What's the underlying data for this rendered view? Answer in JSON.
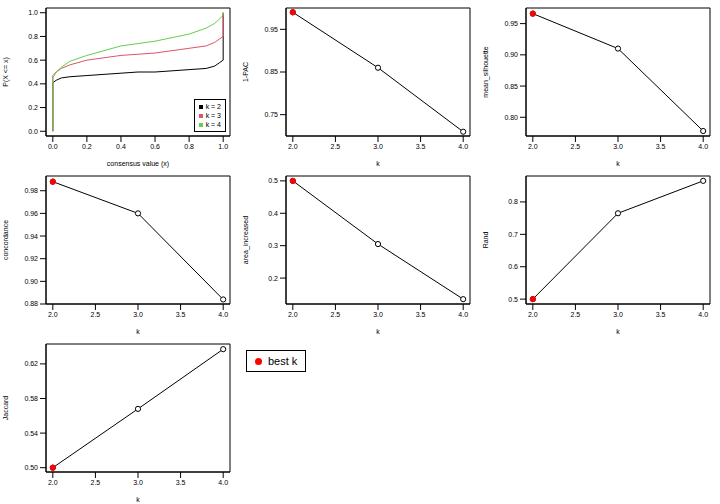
{
  "chart_data": [
    {
      "type": "line",
      "x_label": "consensus value (x)",
      "y_label": "P(X <= x)",
      "x": [
        0,
        0,
        0.02,
        0.05,
        0.1,
        0.2,
        0.3,
        0.4,
        0.5,
        0.6,
        0.7,
        0.8,
        0.9,
        0.95,
        0.98,
        1,
        1
      ],
      "series": [
        {
          "name": "k = 2",
          "color": "#000000",
          "values": [
            0,
            0.41,
            0.43,
            0.45,
            0.46,
            0.47,
            0.48,
            0.49,
            0.5,
            0.5,
            0.51,
            0.52,
            0.53,
            0.55,
            0.58,
            0.6,
            1.0
          ]
        },
        {
          "name": "k = 3",
          "color": "#DF536B",
          "values": [
            0,
            0.47,
            0.5,
            0.53,
            0.56,
            0.6,
            0.62,
            0.64,
            0.65,
            0.66,
            0.68,
            0.7,
            0.72,
            0.75,
            0.78,
            0.8,
            1.0
          ]
        },
        {
          "name": "k = 4",
          "color": "#61D04F",
          "values": [
            0,
            0.45,
            0.5,
            0.54,
            0.59,
            0.64,
            0.68,
            0.72,
            0.74,
            0.76,
            0.79,
            0.82,
            0.87,
            0.91,
            0.95,
            0.98,
            1.0
          ]
        }
      ],
      "xlim": [
        -0.04,
        1.04
      ],
      "xticks": [
        {
          "value": 0,
          "label": "0.0"
        },
        {
          "value": 0.2,
          "label": "0.2"
        },
        {
          "value": 0.4,
          "label": "0.4"
        },
        {
          "value": 0.6,
          "label": "0.6"
        },
        {
          "value": 0.8,
          "label": "0.8"
        },
        {
          "value": 1,
          "label": "1.0"
        }
      ],
      "ylim": [
        -0.04,
        1.04
      ],
      "yticks": [
        {
          "value": 0,
          "label": "0.0"
        },
        {
          "value": 0.2,
          "label": "0.2"
        },
        {
          "value": 0.4,
          "label": "0.4"
        },
        {
          "value": 0.6,
          "label": "0.6"
        },
        {
          "value": 0.8,
          "label": "0.8"
        },
        {
          "value": 1,
          "label": "1.0"
        }
      ],
      "legend": "bottom-right"
    },
    {
      "type": "line",
      "x_label": "k",
      "y_label": "1-PAC",
      "x": [
        2,
        3,
        4
      ],
      "series": [
        {
          "color": "#000000",
          "marker": "open_circle",
          "values": [
            0.99,
            0.86,
            0.71
          ]
        },
        {
          "name": "best k",
          "type": "scatter",
          "color": "#FF0000",
          "marker": "circle",
          "values": [
            0.99,
            null,
            null
          ]
        }
      ],
      "xlim": [
        1.92,
        4.08
      ],
      "xticks": [
        {
          "value": 2,
          "label": "2.0"
        },
        {
          "value": 2.5,
          "label": "2.5"
        },
        {
          "value": 3,
          "label": "3.0"
        },
        {
          "value": 3.5,
          "label": "3.5"
        },
        {
          "value": 4,
          "label": "4.0"
        }
      ],
      "ylim": [
        0.7,
        1.0
      ],
      "yticks": [
        0.75,
        0.85,
        0.95
      ]
    },
    {
      "type": "line",
      "x_label": "k",
      "y_label": "mean_silhouette",
      "x": [
        2,
        3,
        4
      ],
      "series": [
        {
          "color": "#000000",
          "marker": "open_circle",
          "values": [
            0.966,
            0.91,
            0.778
          ]
        },
        {
          "name": "best k",
          "type": "scatter",
          "color": "#FF0000",
          "marker": "circle",
          "values": [
            0.966,
            null,
            null
          ]
        }
      ],
      "xlim": [
        1.92,
        4.08
      ],
      "xticks": [
        {
          "value": 2,
          "label": "2.0"
        },
        {
          "value": 2.5,
          "label": "2.5"
        },
        {
          "value": 3,
          "label": "3.0"
        },
        {
          "value": 3.5,
          "label": "3.5"
        },
        {
          "value": 4,
          "label": "4.0"
        }
      ],
      "ylim": [
        0.77,
        0.975
      ],
      "yticks": [
        {
          "value": 0.8,
          "label": "0.80"
        },
        0.85,
        {
          "value": 0.9,
          "label": "0.90"
        },
        0.95
      ]
    },
    {
      "type": "line",
      "x_label": "k",
      "y_label": "concordance",
      "x": [
        2,
        3,
        4
      ],
      "series": [
        {
          "color": "#000000",
          "marker": "open_circle",
          "values": [
            0.988,
            0.96,
            0.884
          ]
        },
        {
          "name": "best k",
          "type": "scatter",
          "color": "#FF0000",
          "marker": "circle",
          "values": [
            0.988,
            null,
            null
          ]
        }
      ],
      "xlim": [
        1.92,
        4.08
      ],
      "xticks": [
        {
          "value": 2,
          "label": "2.0"
        },
        {
          "value": 2.5,
          "label": "2.5"
        },
        {
          "value": 3,
          "label": "3.0"
        },
        {
          "value": 3.5,
          "label": "3.5"
        },
        {
          "value": 4,
          "label": "4.0"
        }
      ],
      "ylim": [
        0.88,
        0.993
      ],
      "yticks": [
        0.88,
        {
          "value": 0.9,
          "label": "0.90"
        },
        0.92,
        0.94,
        0.96,
        0.98
      ]
    },
    {
      "type": "line",
      "x_label": "k",
      "y_label": "area_increased",
      "x": [
        2,
        3,
        4
      ],
      "series": [
        {
          "color": "#000000",
          "marker": "open_circle",
          "values": [
            0.5,
            0.305,
            0.135
          ]
        },
        {
          "name": "best k",
          "type": "scatter",
          "color": "#FF0000",
          "marker": "circle",
          "values": [
            0.5,
            null,
            null
          ]
        }
      ],
      "xlim": [
        1.92,
        4.08
      ],
      "xticks": [
        {
          "value": 2,
          "label": "2.0"
        },
        {
          "value": 2.5,
          "label": "2.5"
        },
        {
          "value": 3,
          "label": "3.0"
        },
        {
          "value": 3.5,
          "label": "3.5"
        },
        {
          "value": 4,
          "label": "4.0"
        }
      ],
      "ylim": [
        0.12,
        0.515
      ],
      "yticks": [
        0.2,
        0.3,
        0.4,
        0.5
      ]
    },
    {
      "type": "line",
      "x_label": "k",
      "y_label": "Rand",
      "x": [
        2,
        3,
        4
      ],
      "series": [
        {
          "color": "#000000",
          "marker": "open_circle",
          "values": [
            0.5,
            0.765,
            0.865
          ]
        },
        {
          "name": "best k",
          "type": "scatter",
          "color": "#FF0000",
          "marker": "circle",
          "values": [
            0.5,
            null,
            null
          ]
        }
      ],
      "xlim": [
        1.92,
        4.08
      ],
      "xticks": [
        {
          "value": 2,
          "label": "2.0"
        },
        {
          "value": 2.5,
          "label": "2.5"
        },
        {
          "value": 3,
          "label": "3.0"
        },
        {
          "value": 3.5,
          "label": "3.5"
        },
        {
          "value": 4,
          "label": "4.0"
        }
      ],
      "ylim": [
        0.485,
        0.88
      ],
      "yticks": [
        0.5,
        0.6,
        0.7,
        0.8
      ]
    },
    {
      "type": "line",
      "x_label": "k",
      "y_label": "Jaccard",
      "x": [
        2,
        3,
        4
      ],
      "series": [
        {
          "color": "#000000",
          "marker": "open_circle",
          "values": [
            0.5,
            0.568,
            0.637
          ]
        },
        {
          "name": "best k",
          "type": "scatter",
          "color": "#FF0000",
          "marker": "circle",
          "values": [
            0.5,
            null,
            null
          ]
        }
      ],
      "xlim": [
        1.92,
        4.08
      ],
      "xticks": [
        {
          "value": 2,
          "label": "2.0"
        },
        {
          "value": 2.5,
          "label": "2.5"
        },
        {
          "value": 3,
          "label": "3.0"
        },
        {
          "value": 3.5,
          "label": "3.5"
        },
        {
          "value": 4,
          "label": "4.0"
        }
      ],
      "ylim": [
        0.495,
        0.643
      ],
      "yticks": [
        {
          "value": 0.5,
          "label": "0.50"
        },
        0.54,
        0.58,
        0.62
      ]
    }
  ]
}
